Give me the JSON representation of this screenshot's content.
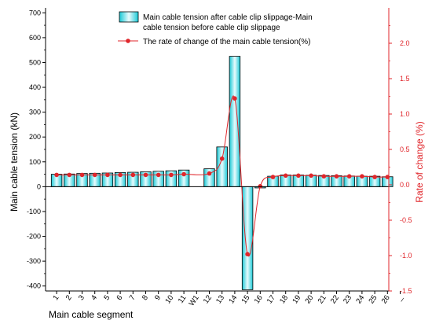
{
  "chart_data": {
    "type": "bar+line",
    "title": "",
    "xlabel": "Main cable segment",
    "ylabel_left": "Main cable tension (kN)",
    "ylabel_right": "Rate of change  (%)",
    "ylim_left": [
      -420,
      720
    ],
    "ylim_right": [
      -1.5,
      2.5
    ],
    "yticks_left": [
      700,
      600,
      500,
      400,
      300,
      200,
      100,
      0,
      -100,
      -200,
      -300,
      -400
    ],
    "yticks_right": [
      2.0,
      1.5,
      1.0,
      0.5,
      0.0,
      -0.5,
      -1.0,
      -1.5
    ],
    "yticks_right_labels": [
      "2.0",
      "1.5",
      "1.0",
      "0.5",
      "0.0",
      "-0.5",
      "-1.0",
      "-1.5"
    ],
    "categories": [
      "1",
      "2",
      "3",
      "4",
      "5",
      "6",
      "7",
      "8",
      "9",
      "10",
      "11",
      "W1",
      "12",
      "13",
      "14",
      "15",
      "16",
      "17",
      "18",
      "19",
      "20",
      "21",
      "22",
      "23",
      "24",
      "25",
      "26"
    ],
    "trailing_tick_label": "_",
    "grid": false,
    "legend_position": "top-center",
    "series": [
      {
        "name": "Main cable tension after cable clip slippage-Main cable tension before cable clip slippage",
        "legend_lines": [
          "Main cable tension after cable clip slippage-Main",
          "cable tension before cable clip slippage"
        ],
        "type": "bar",
        "axis": "left",
        "color": "#19c9d6",
        "values": [
          50,
          51,
          53,
          54,
          55,
          57,
          58,
          60,
          62,
          64,
          67,
          null,
          72,
          160,
          525,
          -415,
          -5,
          42,
          47,
          47,
          46,
          45,
          44,
          43,
          42,
          42,
          40
        ]
      },
      {
        "name": "The rate of change of the main cable tension(%)",
        "type": "line",
        "axis": "right",
        "color": "#e0262b",
        "values": [
          0.14,
          0.14,
          0.14,
          0.14,
          0.14,
          0.14,
          0.14,
          0.14,
          0.14,
          0.14,
          0.15,
          null,
          0.16,
          0.37,
          1.22,
          -0.98,
          -0.02,
          0.11,
          0.13,
          0.13,
          0.13,
          0.12,
          0.12,
          0.12,
          0.12,
          0.11,
          0.11
        ]
      }
    ]
  },
  "colors": {
    "bar_fill": "#19c9d6",
    "line": "#e0262b",
    "right_axis": "#e0262b",
    "left_axis": "#000000"
  }
}
